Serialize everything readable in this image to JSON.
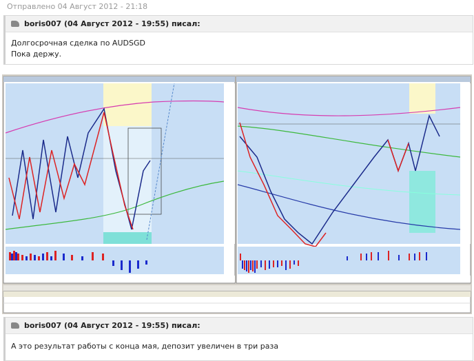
{
  "post": {
    "sent": "Отправлено 04 Август 2012 - 21:18"
  },
  "quotes": [
    {
      "author": "boris007 (04 Август 2012 - 19:55) писал:",
      "lines": [
        "Долгосрочная сделка по AUDSGD",
        "Пока держу."
      ]
    },
    {
      "author": "boris007 (04 Август 2012 - 19:55) писал:",
      "lines": [
        "А это результат работы с конца мая, депозит увеличен в три раза"
      ]
    }
  ]
}
